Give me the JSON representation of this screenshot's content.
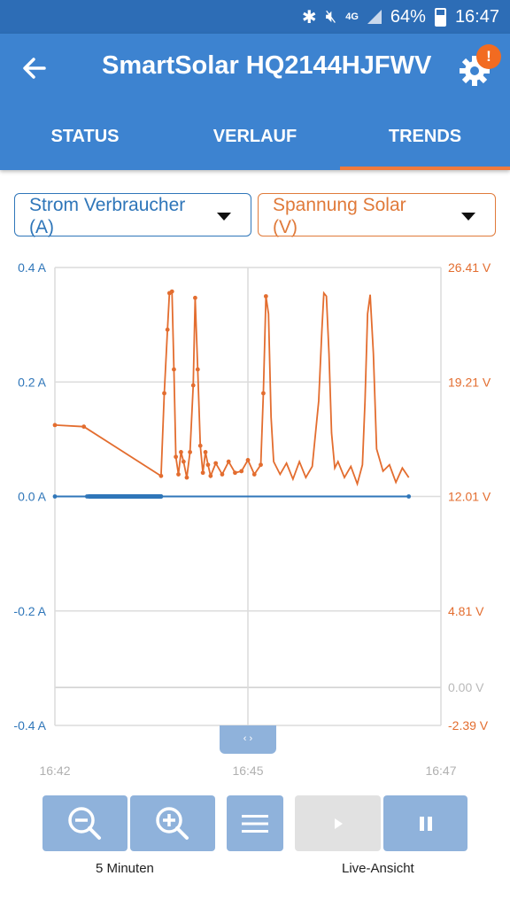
{
  "status_bar": {
    "battery": "64%",
    "time": "16:47",
    "network": "4G"
  },
  "header": {
    "title": "SmartSolar HQ2144HJFWV",
    "badge": "!"
  },
  "tabs": [
    {
      "label": "STATUS",
      "active": false
    },
    {
      "label": "VERLAUF",
      "active": false
    },
    {
      "label": "TRENDS",
      "active": true
    }
  ],
  "selectors": {
    "left": {
      "line1": "Strom Verbraucher",
      "line2": "(A)"
    },
    "right": {
      "line1": "Spannung Solar",
      "line2": "(V)"
    }
  },
  "colors": {
    "left_series": "#2f76b9",
    "right_series": "#e36d2f",
    "header": "#3d83d0",
    "button": "#8fb2db"
  },
  "controls": {
    "zoom_label": "5 Minuten",
    "live_label": "Live-Ansicht",
    "handle_icon": "‹ ›"
  },
  "chart_data": {
    "type": "line",
    "x_ticks": [
      "16:42",
      "16:45",
      "16:47"
    ],
    "x_range_minutes": [
      0,
      6
    ],
    "y_left": {
      "unit": "A",
      "ticks": [
        "0.4 A",
        "0.2 A",
        "0.0 A",
        "-0.2 A",
        "-0.4 A"
      ],
      "range": [
        -0.4,
        0.4
      ]
    },
    "y_right": {
      "unit": "V",
      "ticks": [
        "26.41 V",
        "19.21 V",
        "12.01 V",
        "4.81 V",
        "0.00 V",
        "-2.39 V"
      ],
      "range": [
        -2.39,
        26.41
      ]
    },
    "grid": true,
    "series": [
      {
        "axis": "left",
        "color": "#2f76b9",
        "x": [
          0,
          0.5,
          1.65,
          5.5
        ],
        "values": [
          0.0,
          0.0,
          0.0,
          0.0
        ]
      },
      {
        "axis": "right",
        "color": "#e36d2f",
        "x": [
          0.0,
          0.45,
          1.65,
          1.7,
          1.75,
          1.78,
          1.82,
          1.85,
          1.88,
          1.92,
          1.96,
          2.0,
          2.05,
          2.1,
          2.15,
          2.18,
          2.22,
          2.26,
          2.3,
          2.34,
          2.38,
          2.42,
          2.5,
          2.6,
          2.7,
          2.8,
          2.9,
          3.0,
          3.1,
          3.2,
          3.24,
          3.28,
          3.32,
          3.36,
          3.4,
          3.45,
          3.5,
          3.6,
          3.7,
          3.8,
          3.9,
          4.0,
          4.1,
          4.15,
          4.18,
          4.22,
          4.26,
          4.3,
          4.35,
          4.4,
          4.5,
          4.6,
          4.7,
          4.78,
          4.82,
          4.86,
          4.9,
          4.95,
          5.0,
          5.1,
          5.2,
          5.3,
          5.4,
          5.5
        ],
        "values": [
          16.5,
          16.4,
          13.3,
          18.5,
          22.5,
          24.8,
          24.9,
          20.0,
          14.5,
          13.4,
          14.8,
          14.2,
          13.2,
          14.8,
          19.0,
          24.5,
          20.0,
          15.2,
          13.5,
          14.8,
          14.0,
          13.3,
          14.1,
          13.4,
          14.2,
          13.5,
          13.6,
          14.3,
          13.4,
          14.0,
          18.5,
          24.6,
          23.5,
          17.0,
          14.2,
          13.8,
          13.4,
          14.1,
          13.1,
          14.2,
          13.2,
          13.9,
          18.0,
          22.5,
          24.8,
          24.6,
          21.0,
          16.0,
          13.8,
          14.2,
          13.2,
          13.9,
          12.8,
          14.0,
          18.0,
          23.5,
          24.7,
          21.0,
          15.0,
          13.6,
          14.0,
          12.9,
          13.8,
          13.2
        ]
      }
    ]
  }
}
